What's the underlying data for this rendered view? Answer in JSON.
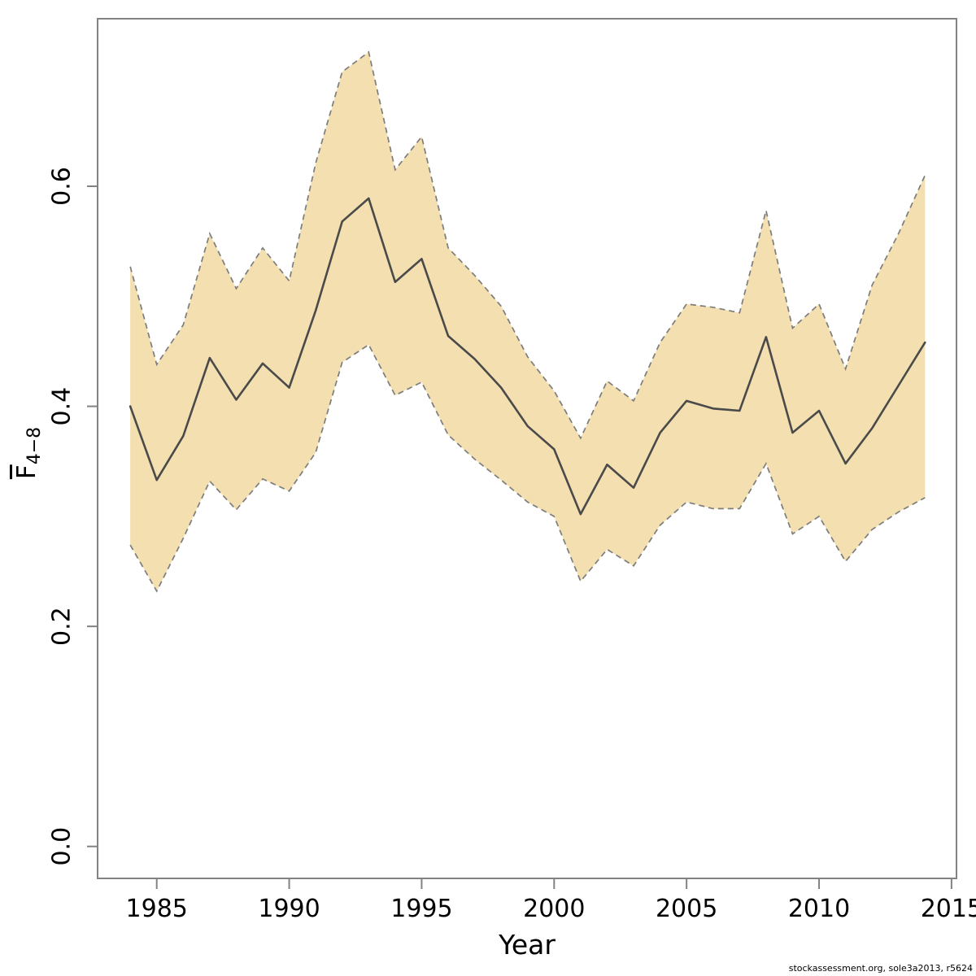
{
  "chart_data": {
    "type": "line",
    "title": "",
    "xlabel": "Year",
    "ylabel_base": "F",
    "ylabel_sub": "4−8",
    "footer": "stockassessment.org, sole3a2013, r5624",
    "x": [
      1984,
      1985,
      1986,
      1987,
      1988,
      1989,
      1990,
      1991,
      1992,
      1993,
      1994,
      1995,
      1996,
      1997,
      1998,
      1999,
      2000,
      2001,
      2002,
      2003,
      2004,
      2005,
      2006,
      2007,
      2008,
      2009,
      2010,
      2011,
      2012,
      2013,
      2014
    ],
    "series": [
      {
        "name": "Fbar estimate",
        "values": [
          0.4,
          0.333,
          0.373,
          0.444,
          0.406,
          0.439,
          0.417,
          0.487,
          0.568,
          0.589,
          0.513,
          0.534,
          0.464,
          0.443,
          0.417,
          0.382,
          0.361,
          0.302,
          0.347,
          0.326,
          0.376,
          0.405,
          0.398,
          0.396,
          0.463,
          0.376,
          0.396,
          0.348,
          0.38,
          0.419,
          0.458
        ]
      },
      {
        "name": "CI lower",
        "values": [
          0.274,
          0.232,
          0.28,
          0.332,
          0.306,
          0.334,
          0.323,
          0.358,
          0.44,
          0.456,
          0.41,
          0.422,
          0.374,
          0.352,
          0.333,
          0.313,
          0.3,
          0.241,
          0.27,
          0.255,
          0.292,
          0.313,
          0.307,
          0.307,
          0.348,
          0.284,
          0.3,
          0.259,
          0.288,
          0.304,
          0.317
        ]
      },
      {
        "name": "CI upper",
        "values": [
          0.527,
          0.438,
          0.474,
          0.557,
          0.507,
          0.544,
          0.514,
          0.621,
          0.704,
          0.722,
          0.615,
          0.645,
          0.544,
          0.519,
          0.491,
          0.445,
          0.414,
          0.371,
          0.423,
          0.405,
          0.458,
          0.493,
          0.49,
          0.485,
          0.578,
          0.471,
          0.493,
          0.434,
          0.51,
          0.557,
          0.61
        ]
      }
    ],
    "x_ticks": [
      1985,
      1990,
      1995,
      2000,
      2005,
      2010,
      2015
    ],
    "y_ticks": [
      "0.0",
      "0.2",
      "0.4",
      "0.6"
    ],
    "xlim": [
      1982.8,
      2015.2
    ],
    "ylim": [
      -0.028,
      0.752
    ],
    "grid": false,
    "legend": "none",
    "colors": {
      "band_fill": "#F3DFAF",
      "band_edge": "#7d7d7d",
      "line": "#4a4a4a",
      "axis": "#828282",
      "text": "#000000"
    }
  }
}
